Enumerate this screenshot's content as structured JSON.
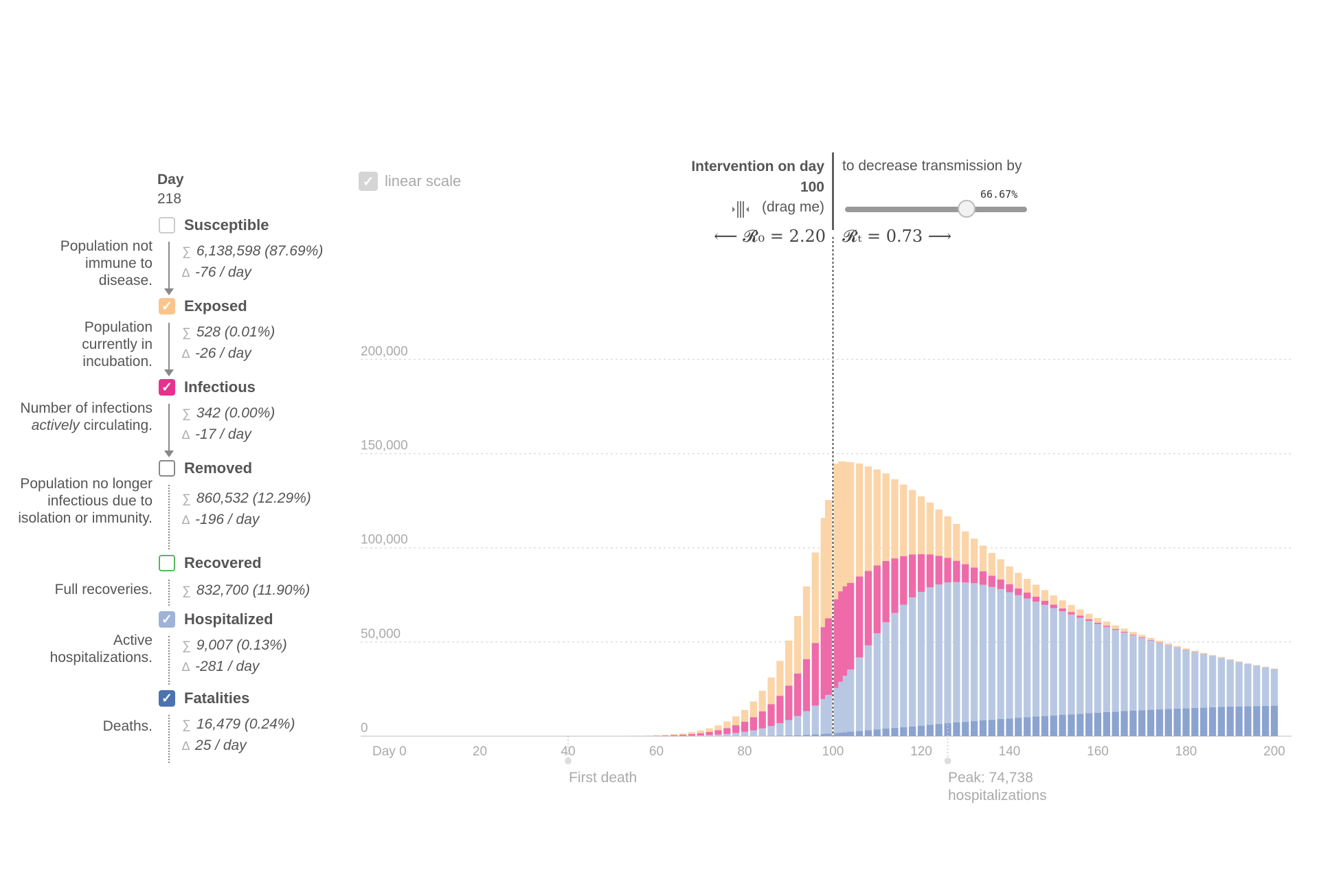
{
  "day": {
    "label": "Day",
    "value": "218"
  },
  "compartments": [
    {
      "id": "susceptible",
      "name": "Susceptible",
      "checked": false,
      "color": "#cccccc",
      "description": "Population not immune to disease.",
      "total": "6,138,598 (87.69%)",
      "delta": "-76 / day"
    },
    {
      "id": "exposed",
      "name": "Exposed",
      "checked": true,
      "color": "#f9c58d",
      "description": "Population currently in incubation.",
      "total": "528 (0.01%)",
      "delta": "-26 / day"
    },
    {
      "id": "infectious",
      "name": "Infectious",
      "checked": true,
      "color": "#e8308f",
      "description": "Number of infections actively circulating.",
      "total": "342 (0.00%)",
      "delta": "-17 / day"
    },
    {
      "id": "removed",
      "name": "Removed",
      "checked": false,
      "color": "#888888",
      "description": "Population no longer infectious due to isolation or immunity.",
      "total": "860,532 (12.29%)",
      "delta": "-196 / day"
    },
    {
      "id": "recovered",
      "name": "Recovered",
      "checked": false,
      "color": "#55b85c",
      "description": "Full recoveries.",
      "total": "832,700 (11.90%)",
      "delta": ""
    },
    {
      "id": "hospitalized",
      "name": "Hospitalized",
      "checked": true,
      "color": "#9fb3d9",
      "description": "Active hospitalizations.",
      "total": "9,007 (0.13%)",
      "delta": "-281 / day"
    },
    {
      "id": "fatalities",
      "name": "Fatalities",
      "checked": true,
      "color": "#4c72b0",
      "description": "Deaths.",
      "total": "16,479 (0.24%)",
      "delta": "25 / day"
    }
  ],
  "symbols": {
    "sum": "∑",
    "delta": "∆"
  },
  "controls": {
    "linear_scale_label": "linear scale",
    "linear_scale_checked": true,
    "intervention_label": "Intervention on day",
    "intervention_day": "100",
    "drag_hint": "(drag me)",
    "decrease_text": "to decrease transmission by",
    "slider_value": "66.67%",
    "slider_fraction": 0.6667,
    "r0_text": "⟵ 𝓡₀ = 2.20",
    "rt_text": "𝓡ₜ = 0.73 ⟶"
  },
  "annotations": {
    "first_death": "First death",
    "peak_line1": "Peak: 74,738",
    "peak_line2": "hospitalizations"
  },
  "chart_data": {
    "type": "bar",
    "stacked": true,
    "x_ticks": [
      "Day 0",
      "20",
      "40",
      "60",
      "80",
      "100",
      "120",
      "140",
      "160",
      "180",
      "200"
    ],
    "y_ticks": [
      "0",
      "50,000",
      "100,000",
      "150,000",
      "200,000"
    ],
    "xlim": [
      0,
      200
    ],
    "ylim": [
      0,
      245000
    ],
    "grid": true,
    "intervention_day": 100,
    "first_death_day": 40,
    "peak_hospital_day": 126,
    "series_order": [
      "fatalities",
      "hospitalized",
      "infectious",
      "exposed"
    ],
    "series_colors": {
      "fatalities": "#8ba3cf",
      "hospitalized": "#b9c8e2",
      "infectious": "#ef6aa9",
      "exposed": "#fbd4a8"
    },
    "days": [
      55,
      58,
      60,
      62,
      64,
      66,
      68,
      70,
      72,
      74,
      76,
      78,
      80,
      82,
      84,
      86,
      88,
      90,
      92,
      94,
      96,
      98,
      99,
      101,
      102,
      103,
      104,
      106,
      108,
      110,
      112,
      114,
      116,
      118,
      120,
      122,
      124,
      126,
      128,
      130,
      132,
      134,
      136,
      138,
      140,
      142,
      144,
      146,
      148,
      150,
      152,
      154,
      156,
      158,
      160,
      162,
      164,
      166,
      168,
      170,
      172,
      174,
      176,
      178,
      180,
      182,
      184,
      186,
      188,
      190,
      192,
      194,
      196,
      198,
      200
    ],
    "fatalities": [
      0,
      0,
      0,
      0,
      0,
      0,
      0,
      0,
      0,
      0,
      0,
      0,
      0,
      0,
      100,
      150,
      250,
      350,
      500,
      700,
      900,
      1200,
      1400,
      1700,
      1900,
      2100,
      2400,
      2800,
      3200,
      3600,
      4000,
      4400,
      4800,
      5200,
      5600,
      6000,
      6500,
      6900,
      7300,
      7600,
      8000,
      8400,
      8700,
      9100,
      9400,
      9800,
      10100,
      10400,
      10700,
      11000,
      11300,
      11600,
      11900,
      12200,
      12500,
      12800,
      13000,
      13300,
      13500,
      13800,
      14000,
      14200,
      14400,
      14600,
      14800,
      15000,
      15200,
      15400,
      15600,
      15700,
      15800,
      15900,
      16000,
      16100,
      16200
    ],
    "hospitalized": [
      0,
      0,
      0,
      0,
      100,
      150,
      250,
      400,
      600,
      850,
      1200,
      1700,
      2300,
      3100,
      4000,
      5200,
      6600,
      8200,
      10200,
      12600,
      15300,
      18500,
      20500,
      24000,
      27000,
      30000,
      33000,
      39000,
      45000,
      51000,
      56500,
      61000,
      65000,
      68500,
      71000,
      73000,
      74000,
      74700,
      74500,
      74000,
      73200,
      72000,
      70500,
      69000,
      67000,
      65000,
      63000,
      61000,
      59000,
      57000,
      55000,
      53000,
      51000,
      49000,
      47000,
      45200,
      43400,
      41700,
      40000,
      38400,
      36800,
      35300,
      33800,
      32400,
      31000,
      29700,
      28400,
      27200,
      26000,
      24800,
      23600,
      22500,
      21500,
      20500,
      19500
    ],
    "infectious": [
      50,
      100,
      200,
      300,
      450,
      600,
      900,
      1200,
      1700,
      2300,
      3100,
      4100,
      5400,
      7000,
      9100,
      11600,
      14600,
      18300,
      22600,
      27600,
      33300,
      38200,
      40700,
      47000,
      48000,
      47500,
      46000,
      43000,
      39500,
      36000,
      32500,
      29000,
      25800,
      22800,
      20000,
      17500,
      15200,
      13100,
      11300,
      9700,
      8300,
      7100,
      6000,
      5100,
      4300,
      3600,
      3100,
      2600,
      2200,
      1800,
      1500,
      1300,
      1100,
      900,
      760,
      640,
      540,
      450,
      380,
      320,
      270,
      230,
      190,
      160,
      140,
      120,
      100,
      85,
      70,
      60,
      50,
      42,
      36,
      30,
      26
    ],
    "exposed": [
      100,
      150,
      250,
      350,
      500,
      700,
      1000,
      1400,
      1900,
      2600,
      3500,
      4700,
      6200,
      8300,
      10900,
      14200,
      18500,
      23900,
      30500,
      38600,
      48000,
      58000,
      62800,
      72000,
      69000,
      66000,
      64000,
      60000,
      55500,
      51000,
      46500,
      42000,
      38000,
      34200,
      30700,
      27500,
      24600,
      22000,
      19600,
      17400,
      15400,
      13700,
      12100,
      10700,
      9400,
      8300,
      7300,
      6400,
      5600,
      4900,
      4300,
      3800,
      3300,
      2900,
      2500,
      2200,
      1900,
      1650,
      1450,
      1250,
      1100,
      950,
      830,
      720,
      620,
      540,
      470,
      410,
      350,
      300,
      260,
      230,
      200,
      170,
      150
    ]
  }
}
